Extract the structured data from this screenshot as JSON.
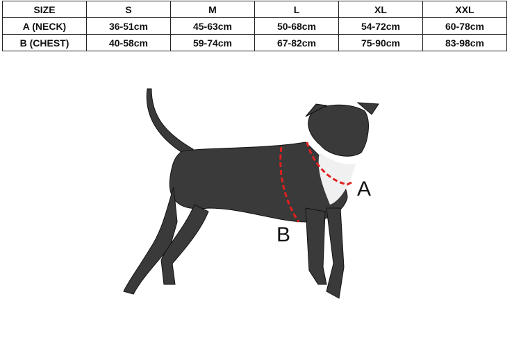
{
  "size_chart": {
    "header": [
      "SIZE",
      "S",
      "M",
      "L",
      "XL",
      "XXL"
    ],
    "rows": [
      [
        "A (NECK)",
        "36-51cm",
        "45-63cm",
        "50-68cm",
        "54-72cm",
        "60-78cm"
      ],
      [
        "B (CHEST)",
        "40-58cm",
        "59-74cm",
        "67-82cm",
        "75-90cm",
        "83-98cm"
      ]
    ]
  },
  "diagram": {
    "label_a": "A",
    "label_b": "B",
    "measure_color": "#e02020"
  }
}
